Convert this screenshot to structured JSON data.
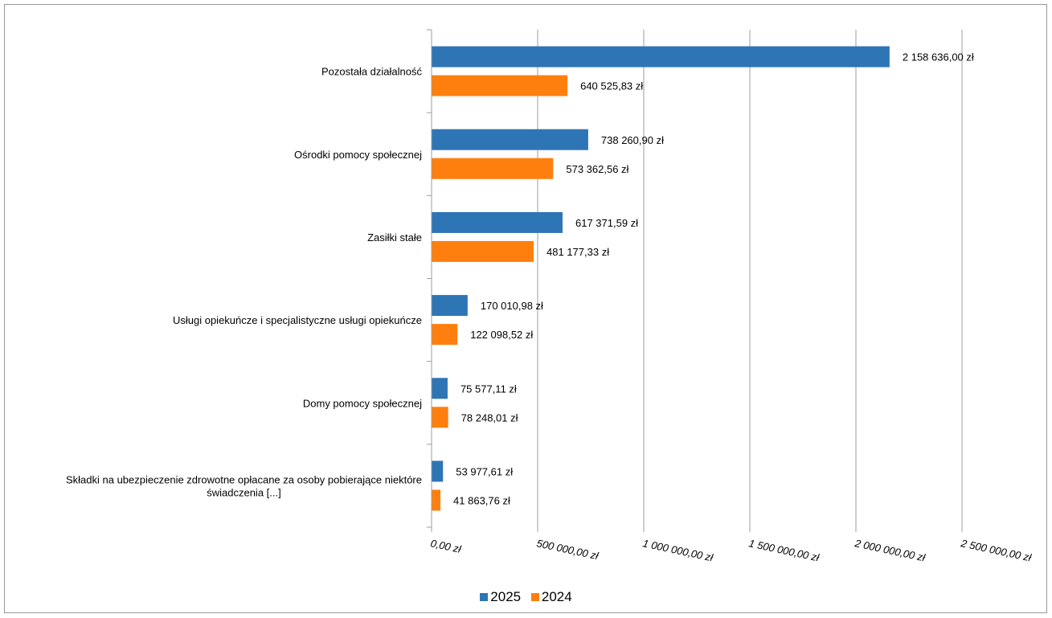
{
  "chart_data": {
    "type": "bar",
    "orientation": "horizontal",
    "categories": [
      "Pozostała działalność",
      "Ośrodki pomocy społecznej",
      "Zasiłki stałe",
      "Usługi opiekuńcze i specjalistyczne usługi opiekuńcze",
      "Domy pomocy społecznej",
      [
        "Składki na ubezpieczenie zdrowotne opłacane za osoby pobierające niektóre",
        "świadczenia [...]"
      ]
    ],
    "series": [
      {
        "name": "2025",
        "color": "#2e75b6",
        "values": [
          2158636.0,
          738260.9,
          617371.59,
          170010.98,
          75577.11,
          53977.61
        ],
        "labels": [
          "2 158 636,00 zł",
          "738 260,90 zł",
          "617 371,59 zł",
          "170 010,98 zł",
          "75 577,11 zł",
          "53 977,61 zł"
        ]
      },
      {
        "name": "2024",
        "color": "#ff7f0e",
        "values": [
          640525.83,
          573362.56,
          481177.33,
          122098.52,
          78248.01,
          41863.76
        ],
        "labels": [
          "640 525,83 zł",
          "573 362,56 zł",
          "481 177,33 zł",
          "122 098,52 zł",
          "78 248,01 zł",
          "41 863,76 zł"
        ]
      }
    ],
    "xlim": [
      0,
      2500000
    ],
    "ticks": [
      0,
      500000,
      1000000,
      1500000,
      2000000,
      2500000
    ],
    "tick_labels": [
      "0,00 zł",
      "500 000,00 zł",
      "1 000 000,00 zł",
      "1 500 000,00 zł",
      "2 000 000,00 zł",
      "2 500 000,00 zł"
    ],
    "grid": "vertical",
    "legend": "bottom"
  }
}
